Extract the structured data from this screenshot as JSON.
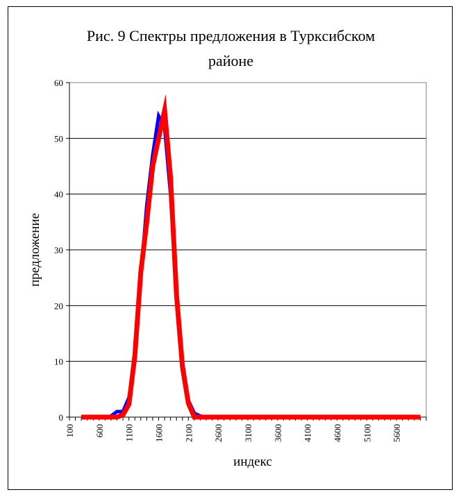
{
  "chart_data": {
    "type": "line",
    "title": "Рис. 9 Спектры предложения в Туркcибском районе",
    "title_lines": [
      "Рис. 9 Спектры предложения в Туркcибском",
      "районе"
    ],
    "xlabel": "индекс",
    "ylabel": "предложение",
    "ylim": [
      0,
      60
    ],
    "yticks": [
      0,
      10,
      20,
      30,
      40,
      50,
      60
    ],
    "xlim": [
      100,
      6100
    ],
    "xticks": [
      100,
      600,
      1100,
      1600,
      2100,
      2600,
      3100,
      3600,
      4100,
      4600,
      5100,
      5600
    ],
    "grid": "horizontal",
    "legend": "none",
    "series": [
      {
        "color": "#0000ff",
        "x": [
          300,
          400,
          500,
          600,
          700,
          800,
          900,
          1000,
          1100,
          1200,
          1300,
          1400,
          1500,
          1600,
          1700,
          1800,
          1900,
          2000,
          2100,
          2200,
          2300,
          2400,
          6000
        ],
        "y": [
          0,
          0,
          0,
          0,
          0,
          0.2,
          1.0,
          1.0,
          3.5,
          10,
          25,
          38,
          47,
          54,
          52,
          40,
          22,
          10,
          3,
          0.7,
          0.2,
          0,
          0
        ]
      },
      {
        "color": "#ff0000",
        "x": [
          300,
          400,
          500,
          600,
          700,
          800,
          900,
          1000,
          1100,
          1200,
          1300,
          1400,
          1500,
          1600,
          1700,
          1800,
          1900,
          2000,
          2100,
          2200,
          2300,
          2400,
          6000
        ],
        "y": [
          0,
          0,
          0,
          0,
          0,
          0,
          0,
          0.4,
          2.3,
          11,
          26,
          35,
          45,
          50,
          55,
          43,
          22,
          9,
          2.5,
          0,
          0,
          0,
          0
        ]
      }
    ]
  }
}
